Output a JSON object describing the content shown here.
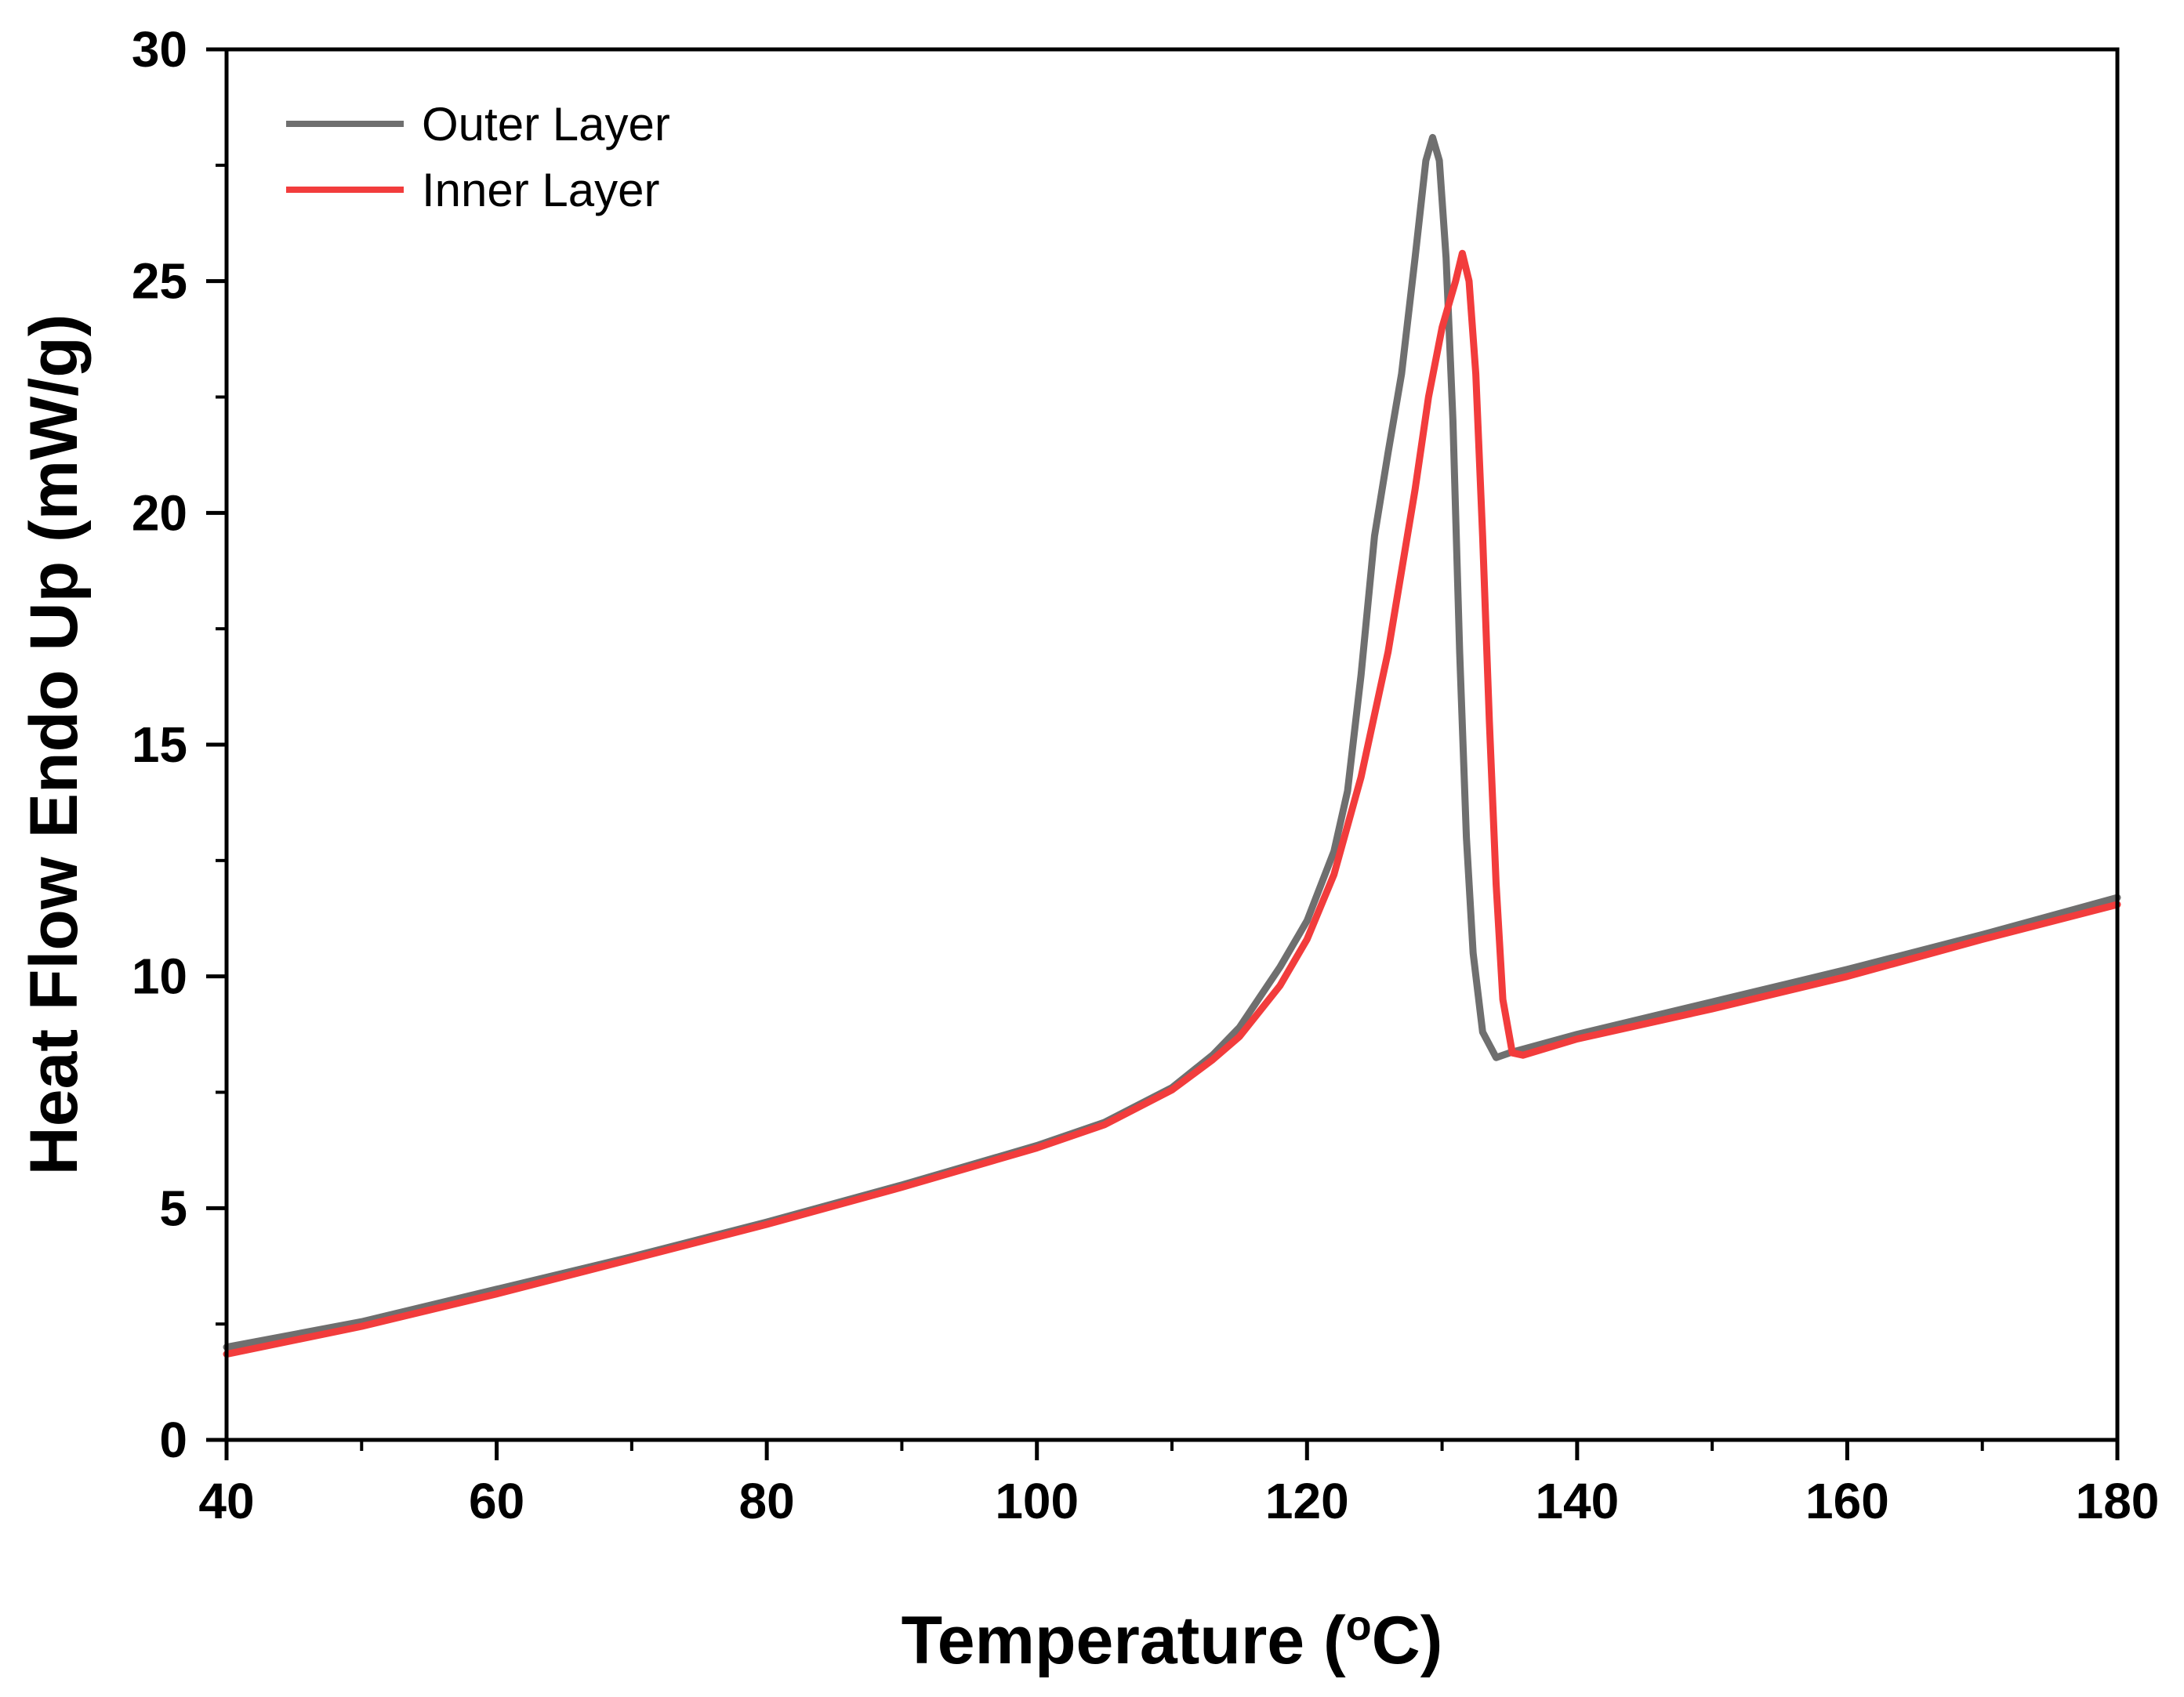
{
  "chart_data": {
    "type": "line",
    "title": "",
    "xlabel": "Temperature (",
    "xlabel_sup": "o",
    "xlabel_unit": "C)",
    "ylabel": "Heat Flow Endo Up (mW/g)",
    "xlim": [
      40,
      180
    ],
    "ylim": [
      0,
      30
    ],
    "x_ticks": [
      40,
      60,
      80,
      100,
      120,
      140,
      160,
      180
    ],
    "x_minor_step": 10,
    "y_ticks": [
      0,
      5,
      10,
      15,
      20,
      25,
      30
    ],
    "y_minor_step": 2.5,
    "legend_position": "top-left",
    "series": [
      {
        "name": "Outer Layer",
        "color": "#6f6f6f",
        "points": [
          [
            40,
            2.0
          ],
          [
            50,
            2.55
          ],
          [
            60,
            3.25
          ],
          [
            70,
            3.95
          ],
          [
            80,
            4.7
          ],
          [
            90,
            5.5
          ],
          [
            100,
            6.35
          ],
          [
            105,
            6.85
          ],
          [
            110,
            7.6
          ],
          [
            113,
            8.3
          ],
          [
            115,
            8.9
          ],
          [
            118,
            10.2
          ],
          [
            120,
            11.2
          ],
          [
            122,
            12.7
          ],
          [
            123,
            14.0
          ],
          [
            124,
            16.5
          ],
          [
            125,
            19.5
          ],
          [
            126,
            21.3
          ],
          [
            127,
            23.0
          ],
          [
            128,
            25.5
          ],
          [
            128.8,
            27.6
          ],
          [
            129.3,
            28.1
          ],
          [
            129.8,
            27.6
          ],
          [
            130.3,
            25.5
          ],
          [
            130.8,
            22.0
          ],
          [
            131.3,
            17.0
          ],
          [
            131.8,
            13.0
          ],
          [
            132.3,
            10.5
          ],
          [
            133,
            8.8
          ],
          [
            134,
            8.25
          ],
          [
            135,
            8.35
          ],
          [
            140,
            8.75
          ],
          [
            150,
            9.45
          ],
          [
            160,
            10.15
          ],
          [
            170,
            10.9
          ],
          [
            180,
            11.7
          ]
        ]
      },
      {
        "name": "Inner Layer",
        "color": "#f23c3c",
        "points": [
          [
            40,
            1.85
          ],
          [
            50,
            2.45
          ],
          [
            60,
            3.15
          ],
          [
            70,
            3.9
          ],
          [
            80,
            4.65
          ],
          [
            90,
            5.45
          ],
          [
            100,
            6.3
          ],
          [
            105,
            6.8
          ],
          [
            110,
            7.55
          ],
          [
            113,
            8.2
          ],
          [
            115,
            8.7
          ],
          [
            118,
            9.8
          ],
          [
            120,
            10.8
          ],
          [
            122,
            12.2
          ],
          [
            124,
            14.3
          ],
          [
            126,
            17.0
          ],
          [
            128,
            20.5
          ],
          [
            129,
            22.5
          ],
          [
            130,
            24.0
          ],
          [
            131,
            25.0
          ],
          [
            131.5,
            25.6
          ],
          [
            132,
            25.0
          ],
          [
            132.5,
            23.0
          ],
          [
            133,
            19.5
          ],
          [
            133.5,
            15.5
          ],
          [
            134,
            12.0
          ],
          [
            134.5,
            9.5
          ],
          [
            135.2,
            8.35
          ],
          [
            136,
            8.3
          ],
          [
            140,
            8.65
          ],
          [
            150,
            9.3
          ],
          [
            160,
            10.0
          ],
          [
            170,
            10.8
          ],
          [
            180,
            11.55
          ]
        ]
      }
    ]
  }
}
